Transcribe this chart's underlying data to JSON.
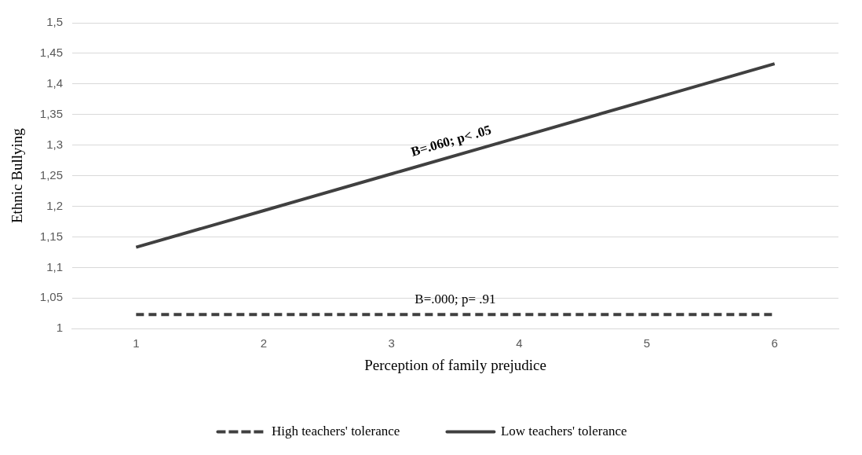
{
  "chart_data": {
    "type": "line",
    "xlabel": "Perception of family prejudice",
    "ylabel": "Ethnic Bullying",
    "categories": [
      "1",
      "2",
      "3",
      "4",
      "5",
      "6"
    ],
    "series": [
      {
        "name": "High teachers' tolerance",
        "color": "#404040",
        "line_style": "dashed",
        "values": [
          1.023,
          1.023,
          1.023,
          1.023,
          1.023,
          1.023
        ]
      },
      {
        "name": "Low teachers' tolerance",
        "color": "#404040",
        "line_style": "solid",
        "values": [
          1.133,
          1.193,
          1.253,
          1.313,
          1.373,
          1.433
        ]
      }
    ],
    "ylim": [
      1,
      1.5
    ],
    "yticks": [
      {
        "value": 1,
        "label": "1"
      },
      {
        "value": 1.05,
        "label": "1,05"
      },
      {
        "value": 1.1,
        "label": "1,1"
      },
      {
        "value": 1.15,
        "label": "1,15"
      },
      {
        "value": 1.2,
        "label": "1,2"
      },
      {
        "value": 1.25,
        "label": "1,25"
      },
      {
        "value": 1.3,
        "label": "1,3"
      },
      {
        "value": 1.35,
        "label": "1,35"
      },
      {
        "value": 1.4,
        "label": "1,4"
      },
      {
        "value": 1.45,
        "label": "1,45"
      },
      {
        "value": 1.5,
        "label": "1,5"
      }
    ],
    "annotations": [
      {
        "text": "B=.060; p< .05",
        "x": "3",
        "y": 1.253
      },
      {
        "text": "B=.000; p= .91",
        "x": "3",
        "y": 1.023
      }
    ],
    "grid": "y",
    "legend": "bottom",
    "marker": "none"
  }
}
